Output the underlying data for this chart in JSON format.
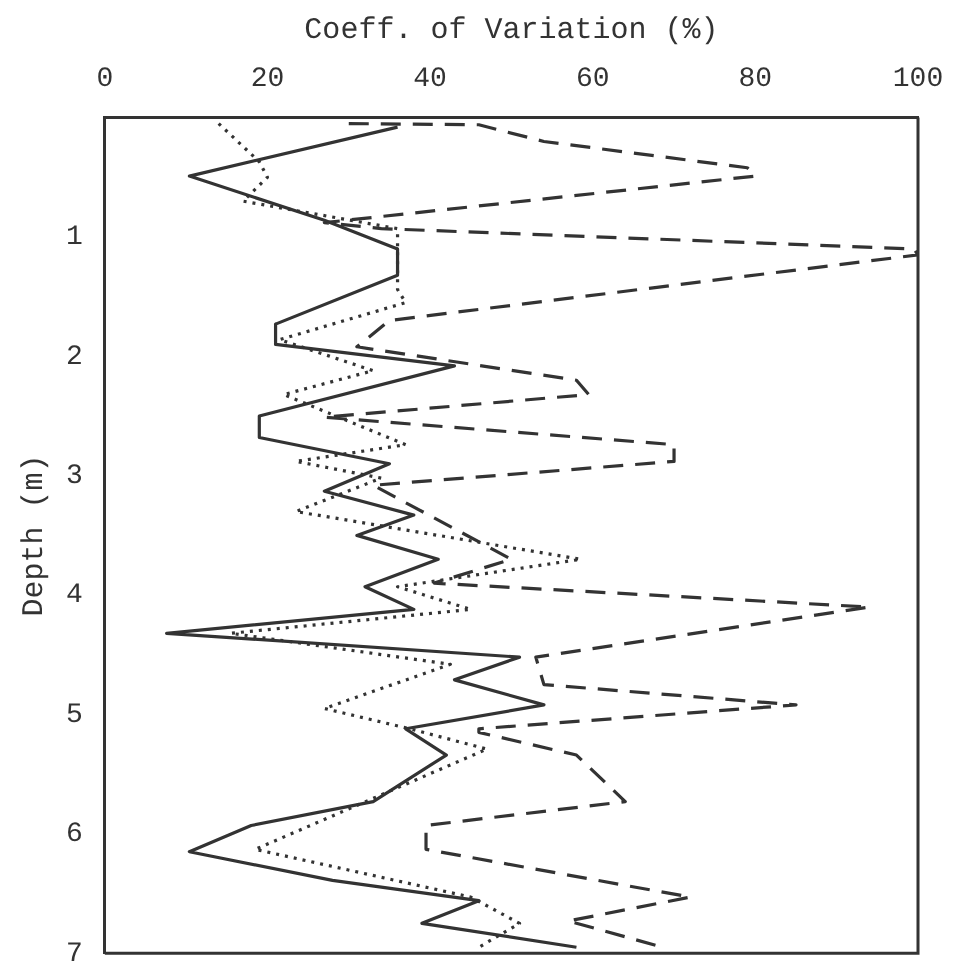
{
  "chart_data": {
    "type": "line",
    "xlabel": "Coeff. of Variation (%)",
    "ylabel": "Depth (m)",
    "xlim": [
      0,
      100
    ],
    "xticks": [
      0,
      20,
      40,
      60,
      80,
      100
    ],
    "ylim": [
      7,
      0
    ],
    "yticks": [
      1,
      2,
      3,
      4,
      5,
      6,
      7
    ],
    "grid": false,
    "legend": false,
    "marker": "none",
    "series": [
      {
        "color": "#333333",
        "line_style": "solid",
        "x": [
          36,
          10.4,
          27,
          36,
          36,
          21,
          21,
          43,
          19,
          19,
          35,
          27,
          38,
          31,
          41,
          32,
          38,
          7.6,
          51,
          43,
          54,
          37,
          42,
          33,
          18,
          10.4,
          28,
          46,
          39,
          58
        ],
        "values": [
          0.08,
          0.49,
          0.86,
          1.1,
          1.32,
          1.73,
          1.9,
          2.08,
          2.5,
          2.68,
          2.9,
          3.13,
          3.33,
          3.5,
          3.7,
          3.93,
          4.12,
          4.32,
          4.52,
          4.71,
          4.92,
          5.12,
          5.34,
          5.73,
          5.93,
          6.15,
          6.39,
          6.56,
          6.75,
          6.95
        ]
      },
      {
        "color": "#333333",
        "line_style": "dotted",
        "x": [
          14,
          19,
          20,
          17,
          36,
          36,
          37,
          21.5,
          33,
          22,
          37,
          23.5,
          34,
          23.5,
          58.5,
          36,
          45,
          15.5,
          42.5,
          27,
          37.5,
          47,
          28,
          18.5,
          45,
          51,
          46
        ],
        "values": [
          0.05,
          0.37,
          0.5,
          0.7,
          0.93,
          1.44,
          1.55,
          1.86,
          2.12,
          2.32,
          2.74,
          2.88,
          3.02,
          3.3,
          3.7,
          3.93,
          4.12,
          4.32,
          4.58,
          4.95,
          5.12,
          5.29,
          5.85,
          6.13,
          6.53,
          6.75,
          6.95
        ]
      },
      {
        "color": "#333333",
        "line_style": "dashed",
        "x": [
          30,
          46,
          54,
          79,
          80,
          27,
          34,
          99.5,
          100,
          35,
          31,
          58,
          59.5,
          27,
          70,
          70,
          33,
          50,
          40.5,
          94,
          53,
          54,
          85,
          46,
          46,
          58,
          64,
          39.5,
          39.5,
          72,
          57,
          68.6
        ],
        "values": [
          0.05,
          0.06,
          0.2,
          0.42,
          0.49,
          0.88,
          0.93,
          1.1,
          1.15,
          1.7,
          1.92,
          2.2,
          2.32,
          2.51,
          2.74,
          2.88,
          3.08,
          3.7,
          3.9,
          4.1,
          4.52,
          4.75,
          4.92,
          5.12,
          5.15,
          5.34,
          5.73,
          5.93,
          6.13,
          6.53,
          6.73,
          6.95
        ]
      }
    ]
  }
}
